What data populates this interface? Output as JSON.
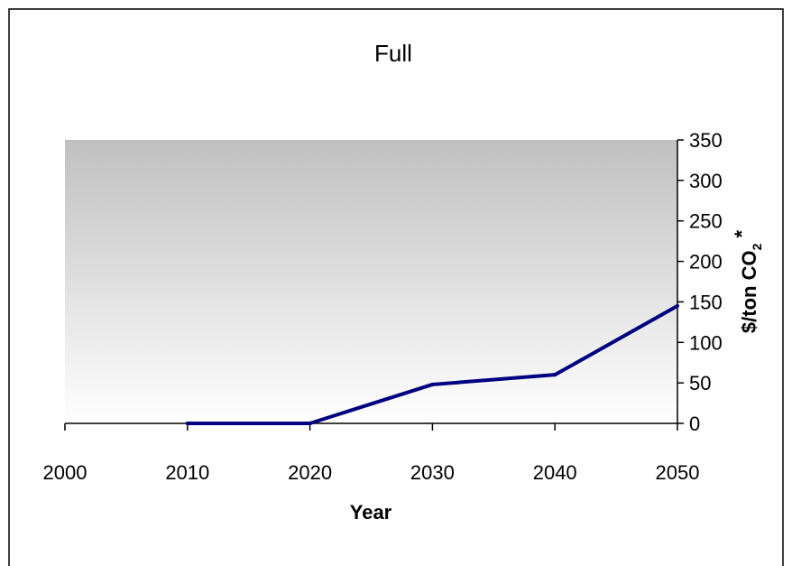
{
  "chart_data": {
    "type": "line",
    "title": "Full",
    "xlabel": "Year",
    "ylabel": "$/ton CO",
    "ylabel_subscript": "2",
    "ylabel_suffix": " *",
    "x_ticks": [
      "2000",
      "2010",
      "2020",
      "2030",
      "2040",
      "2050"
    ],
    "y_ticks": [
      "0",
      "50",
      "100",
      "150",
      "200",
      "250",
      "300",
      "350"
    ],
    "xlim": [
      2000,
      2050
    ],
    "ylim": [
      0,
      350
    ],
    "y_axis_side": "right",
    "grid": false,
    "legend": "none",
    "series": [
      {
        "x": [
          2010,
          2020,
          2030,
          2040,
          2050
        ],
        "values": [
          0,
          0,
          48,
          60,
          145
        ],
        "color": "#000080"
      }
    ],
    "plot_background_top": "#c0c0c0",
    "plot_background_bottom": "#ffffff"
  }
}
